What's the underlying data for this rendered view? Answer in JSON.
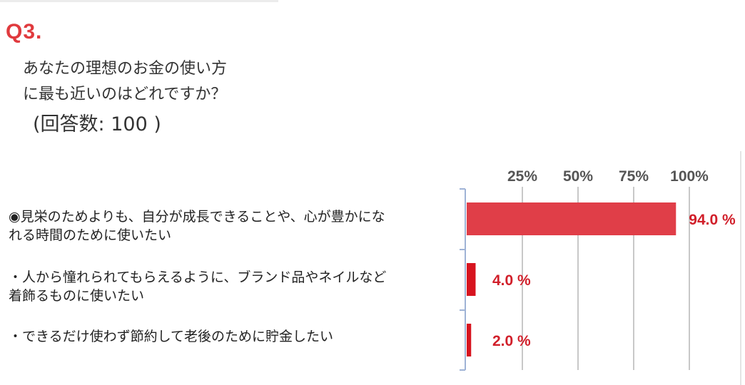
{
  "question": {
    "number": "Q3.",
    "text_line1": "あなたの理想のお金の使い方",
    "text_line2": "に最も近いのはどれですか？",
    "response_count": "(回答数: 100 )"
  },
  "options": [
    {
      "line1": "◉見栄のためよりも、自分が成長できることや、心が豊かにな",
      "line2": "れる時間のために使いたい"
    },
    {
      "line1": "・人から憧れられてもらえるように、ブランド品やネイルなど",
      "line2": "着飾るものに使いたい"
    },
    {
      "line1": "・できるだけ使わず節約して老後のために貯金したい",
      "line2": ""
    }
  ],
  "colors": {
    "accent": "#e03a3e",
    "bar_primary": "#e03e48",
    "bar_secondary": "#d7141f",
    "value_text": "#d11f2a",
    "grid": "#c8c8c8",
    "axis": "#9fb3d6"
  },
  "chart_data": {
    "type": "bar",
    "orientation": "horizontal",
    "categories": [
      "見栄のためよりも、自分が成長できることや、心が豊かになれる時間のために使いたい",
      "人から憧れられてもらえるように、ブランド品やネイルなど着飾るものに使いたい",
      "できるだけ使わず節約して老後のために貯金したい"
    ],
    "values": [
      94.0,
      4.0,
      2.0
    ],
    "value_labels": [
      "94.0 %",
      "4.0 %",
      "2.0 %"
    ],
    "xlim": [
      0,
      100
    ],
    "ticks": [
      25,
      50,
      75,
      100
    ],
    "tick_labels": [
      "25%",
      "50%",
      "75%",
      "100%"
    ],
    "tick_position": "top",
    "grid": true,
    "legend": "none"
  }
}
